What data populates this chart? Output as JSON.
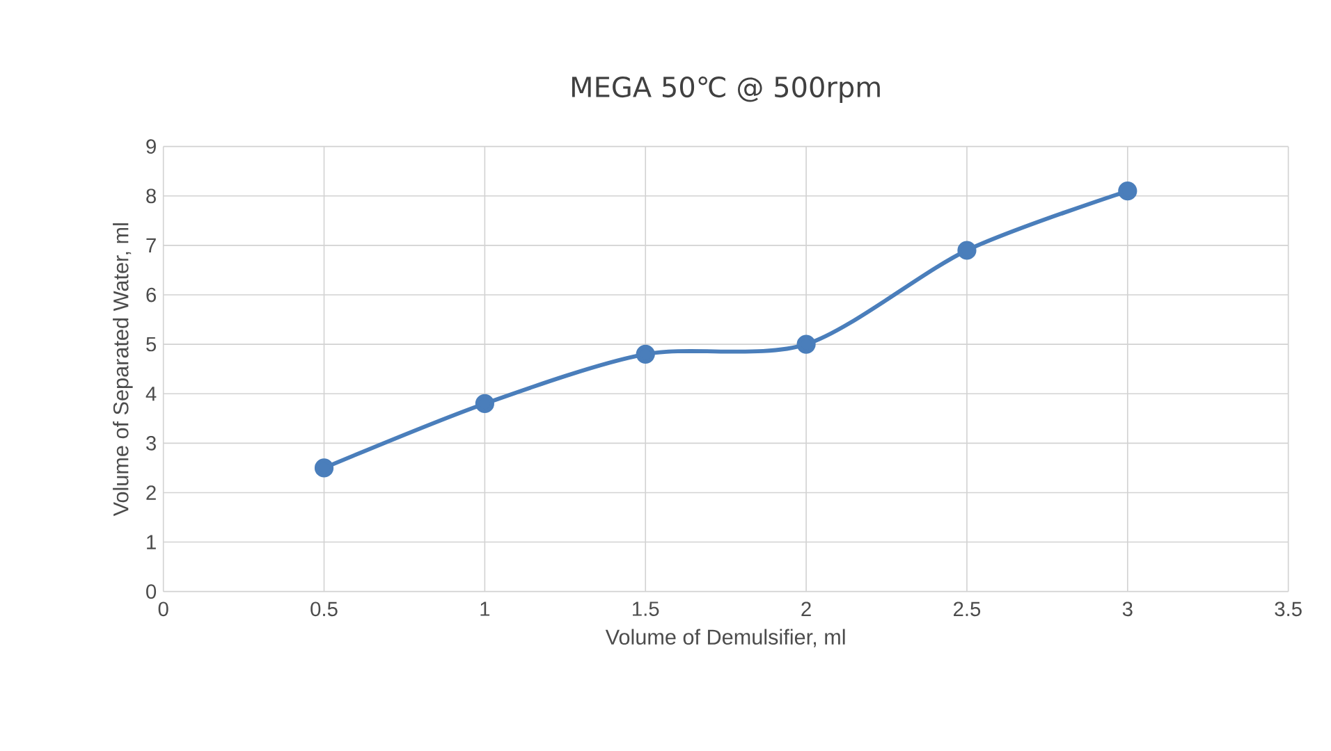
{
  "chart_data": {
    "type": "line",
    "title": "MEGA 50℃ @ 500rpm",
    "xlabel": "Volume of Demulsifier, ml",
    "ylabel": "Volume of Separated Water, ml",
    "x": [
      0.5,
      1,
      1.5,
      2,
      2.5,
      3
    ],
    "series": [
      {
        "color": "#4a7ebb",
        "values": [
          2.5,
          3.8,
          4.8,
          5.0,
          6.9,
          8.1
        ]
      }
    ],
    "xlim": [
      0,
      3.5
    ],
    "xticks": [
      0,
      0.5,
      1,
      1.5,
      2,
      2.5,
      3,
      3.5
    ],
    "ylim": [
      0,
      9
    ],
    "yticks": [
      0,
      1,
      2,
      3,
      4,
      5,
      6,
      7,
      8,
      9
    ],
    "grid": true,
    "marker": "circle",
    "line_style": "solid"
  }
}
